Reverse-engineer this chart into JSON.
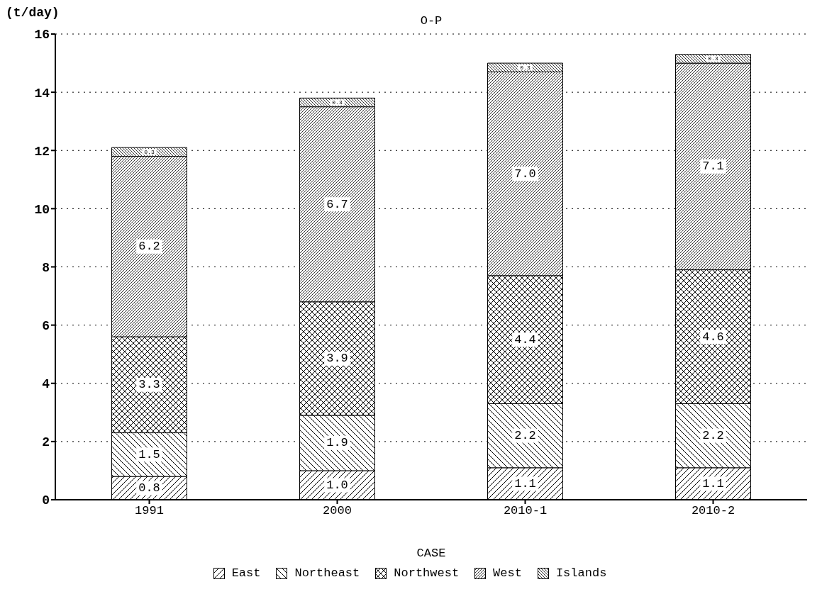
{
  "chart_data": {
    "type": "bar",
    "title": "O-P",
    "ylabel": "(t/day)",
    "xlabel": "CASE",
    "stacked": true,
    "categories": [
      "1991",
      "2000",
      "2010-1",
      "2010-2"
    ],
    "series": [
      {
        "name": "East",
        "color": "#000000",
        "values": [
          0.8,
          1.0,
          1.1,
          1.1
        ],
        "value_labels": [
          "0.8",
          "1.0",
          "1.1",
          "1.1"
        ]
      },
      {
        "name": "Northeast",
        "color": "#000000",
        "values": [
          1.5,
          1.9,
          2.2,
          2.2
        ],
        "value_labels": [
          "1.5",
          "1.9",
          "2.2",
          "2.2"
        ]
      },
      {
        "name": "Northwest",
        "color": "#000000",
        "values": [
          3.3,
          3.9,
          4.4,
          4.6
        ],
        "value_labels": [
          "3.3",
          "3.9",
          "4.4",
          "4.6"
        ]
      },
      {
        "name": "West",
        "color": "#000000",
        "values": [
          6.2,
          6.7,
          7.0,
          7.1
        ],
        "value_labels": [
          "6.2",
          "6.7",
          "7.0",
          "7.1"
        ]
      },
      {
        "name": "Islands",
        "color": "#000000",
        "values": [
          0.3,
          0.3,
          0.3,
          0.3
        ],
        "value_labels": [
          "0.3",
          "0.3",
          "0.3",
          "0.3"
        ]
      }
    ],
    "ylim": [
      0,
      16
    ],
    "yticks": [
      0,
      2,
      4,
      6,
      8,
      10,
      12,
      14,
      16
    ],
    "grid": "y",
    "legend": "bottom"
  }
}
